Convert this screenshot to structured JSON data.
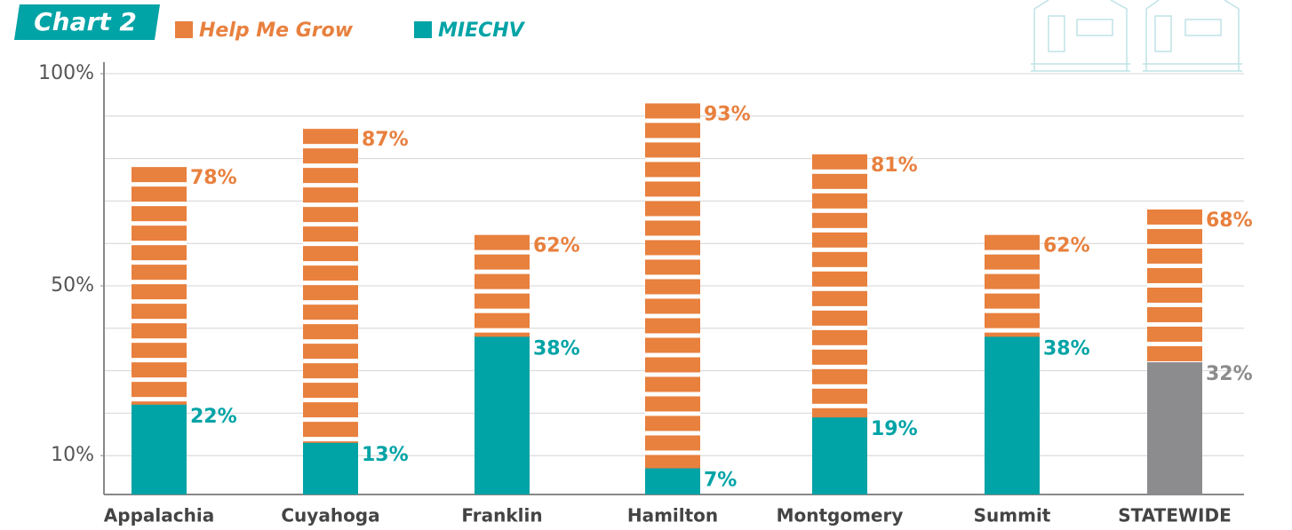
{
  "chart_data": {
    "type": "overlap-bar",
    "title": "Chart 2",
    "categories": [
      "Appalachia",
      "Cuyahoga",
      "Franklin",
      "Hamilton",
      "Montgomery",
      "Summit",
      "STATEWIDE"
    ],
    "series": [
      {
        "name": "Help Me Grow",
        "color": "#e8803e",
        "values": [
          78,
          87,
          62,
          93,
          81,
          62,
          68
        ],
        "value_labels": [
          "78%",
          "87%",
          "62%",
          "93%",
          "81%",
          "62%",
          "68%"
        ]
      },
      {
        "name": "MIECHV",
        "color": "#00a3a6",
        "values": [
          22,
          13,
          38,
          7,
          19,
          38,
          32
        ],
        "value_labels": [
          "22%",
          "13%",
          "38%",
          "7%",
          "19%",
          "38%",
          "32%"
        ],
        "colors": [
          "#00a3a6",
          "#00a3a6",
          "#00a3a6",
          "#00a3a6",
          "#00a3a6",
          "#00a3a6",
          "#8c8c8e"
        ]
      }
    ],
    "ylim": [
      0,
      100
    ],
    "yticks": [
      {
        "value": 10,
        "label": "10%"
      },
      {
        "value": 50,
        "label": "50%"
      },
      {
        "value": 100,
        "label": "100%"
      }
    ],
    "ygrid": [
      10,
      20,
      30,
      40,
      50,
      60,
      70,
      80,
      90,
      100
    ],
    "grid": true
  }
}
